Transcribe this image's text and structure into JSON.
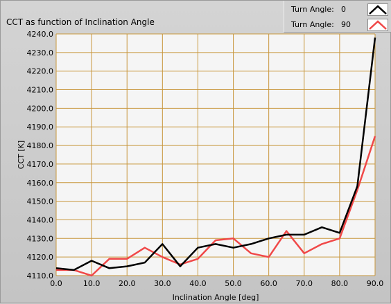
{
  "colors": {
    "plot_background": "#f5f5f5",
    "grid": "#c8963c",
    "series_black": "#000000",
    "series_red": "#f04848"
  },
  "legend": {
    "items": [
      {
        "label": "Turn Angle:",
        "value": "0",
        "color": "#000000",
        "icon": "line-swatch-icon"
      },
      {
        "label": "Turn Angle:",
        "value": "90",
        "color": "#f04848",
        "icon": "line-swatch-icon"
      }
    ]
  },
  "chart_data": {
    "type": "line",
    "title": "CCT as function of Inclination Angle",
    "xlabel": "Inclination Angle [deg]",
    "ylabel": "CCT [K]",
    "xlim": [
      0,
      90
    ],
    "ylim": [
      4110,
      4240
    ],
    "grid": true,
    "legend_position": "top-right",
    "x_ticks": [
      "0.0",
      "10.0",
      "20.0",
      "30.0",
      "40.0",
      "50.0",
      "60.0",
      "70.0",
      "80.0",
      "90.0"
    ],
    "y_ticks": [
      "4110.0",
      "4120.0",
      "4130.0",
      "4140.0",
      "4150.0",
      "4160.0",
      "4170.0",
      "4180.0",
      "4190.0",
      "4200.0",
      "4210.0",
      "4220.0",
      "4230.0",
      "4240.0"
    ],
    "x": [
      0,
      5,
      10,
      15,
      20,
      25,
      30,
      35,
      40,
      45,
      50,
      55,
      60,
      65,
      70,
      75,
      80,
      85,
      90
    ],
    "series": [
      {
        "name": "Turn Angle: 0",
        "color": "#000000",
        "values": [
          4114,
          4113,
          4118,
          4114,
          4115,
          4117,
          4127,
          4115,
          4125,
          4127,
          4125,
          4127,
          4130,
          4132,
          4132,
          4136,
          4133,
          4158,
          4238
        ]
      },
      {
        "name": "Turn Angle: 90",
        "color": "#f04848",
        "values": [
          4113,
          4113,
          4110,
          4119,
          4119,
          4125,
          4120,
          4116,
          4119,
          4129,
          4130,
          4122,
          4120,
          4134,
          4122,
          4127,
          4130,
          4156,
          4185
        ]
      }
    ]
  }
}
